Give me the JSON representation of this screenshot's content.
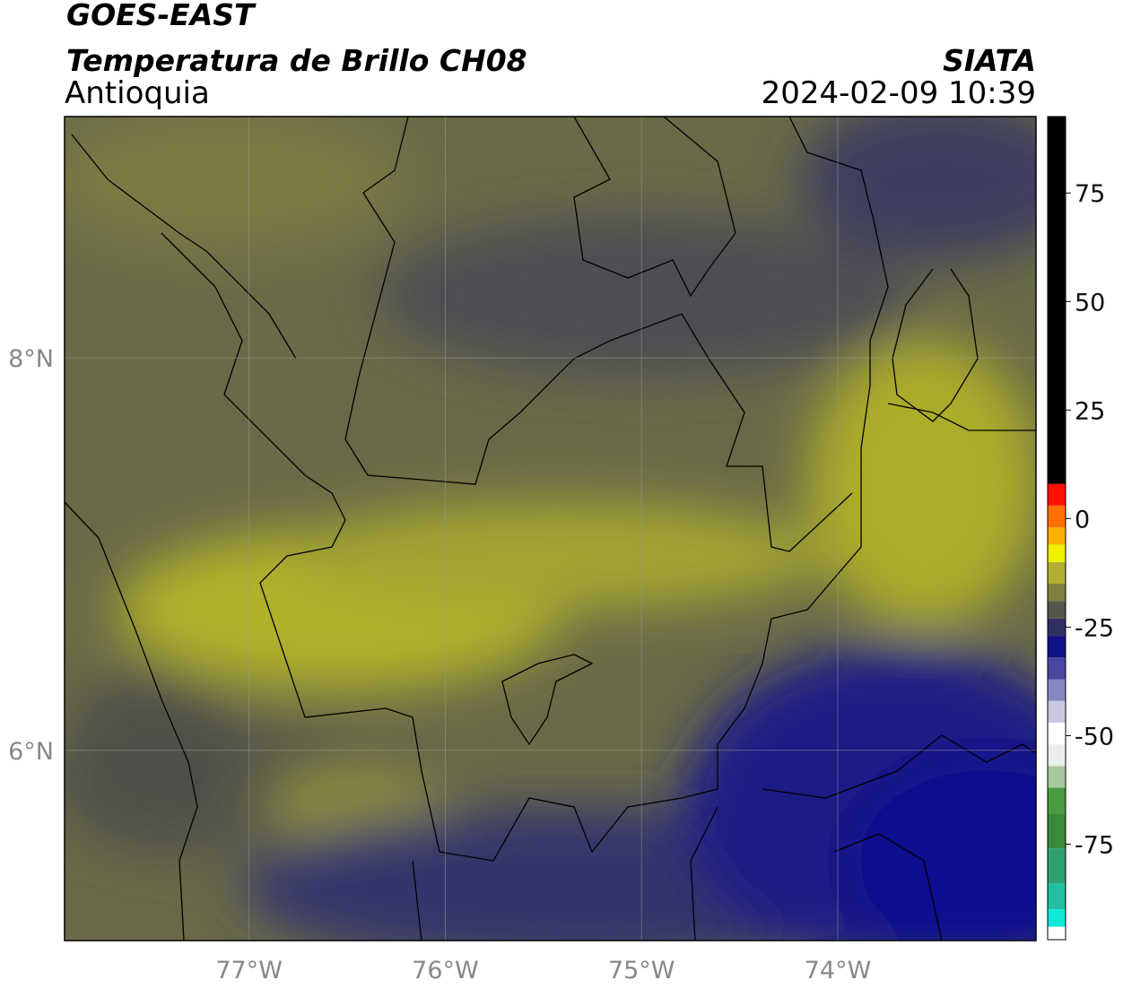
{
  "header": {
    "title": "GOES-EAST",
    "subtitle": "Temperatura de Brillo CH08",
    "region": "Antioquia",
    "source": "SIATA",
    "datetime": "2024-02-09 10:39"
  },
  "map": {
    "xlim": [
      -77.94,
      -72.99
    ],
    "ylim": [
      5.03,
      9.23
    ],
    "xticks": [
      {
        "value": -77,
        "label": "77°W"
      },
      {
        "value": -76,
        "label": "76°W"
      },
      {
        "value": -75,
        "label": "75°W"
      },
      {
        "value": -74,
        "label": "74°W"
      }
    ],
    "yticks": [
      {
        "value": 6,
        "label": "6°N"
      },
      {
        "value": 8,
        "label": "8°N"
      }
    ],
    "grid": true
  },
  "colorbar": {
    "lim": [
      -97,
      92.6
    ],
    "ticks": [
      -75,
      -50,
      -25,
      0,
      25,
      50,
      75
    ],
    "colormap": [
      {
        "from": -97,
        "to": -94,
        "color": "#ffffff"
      },
      {
        "from": -94,
        "to": -90,
        "color": "#10e8d8"
      },
      {
        "from": -90,
        "to": -84,
        "color": "#20c0a0"
      },
      {
        "from": -84,
        "to": -76,
        "color": "#30a070"
      },
      {
        "from": -76,
        "to": -68,
        "color": "#3a8a3a"
      },
      {
        "from": -68,
        "to": -62,
        "color": "#4a9a40"
      },
      {
        "from": -62,
        "to": -57,
        "color": "#a8c8a0"
      },
      {
        "from": -57,
        "to": -52,
        "color": "#e8f0e8"
      },
      {
        "from": -52,
        "to": -47,
        "color": "#ffffff"
      },
      {
        "from": -47,
        "to": -42,
        "color": "#c8c8e0"
      },
      {
        "from": -42,
        "to": -37,
        "color": "#8888c0"
      },
      {
        "from": -37,
        "to": -32,
        "color": "#4848a0"
      },
      {
        "from": -32,
        "to": -27,
        "color": "#101088"
      },
      {
        "from": -27,
        "to": -23,
        "color": "#303060"
      },
      {
        "from": -23,
        "to": -19,
        "color": "#55554a"
      },
      {
        "from": -19,
        "to": -15,
        "color": "#808040"
      },
      {
        "from": -15,
        "to": -10,
        "color": "#b0b030"
      },
      {
        "from": -10,
        "to": -6,
        "color": "#f0f000"
      },
      {
        "from": -6,
        "to": -2,
        "color": "#ffb000"
      },
      {
        "from": -2,
        "to": 3,
        "color": "#ff7000"
      },
      {
        "from": 3,
        "to": 8,
        "color": "#ff1000"
      },
      {
        "from": 8,
        "to": 92.6,
        "color": "#000000"
      }
    ]
  }
}
